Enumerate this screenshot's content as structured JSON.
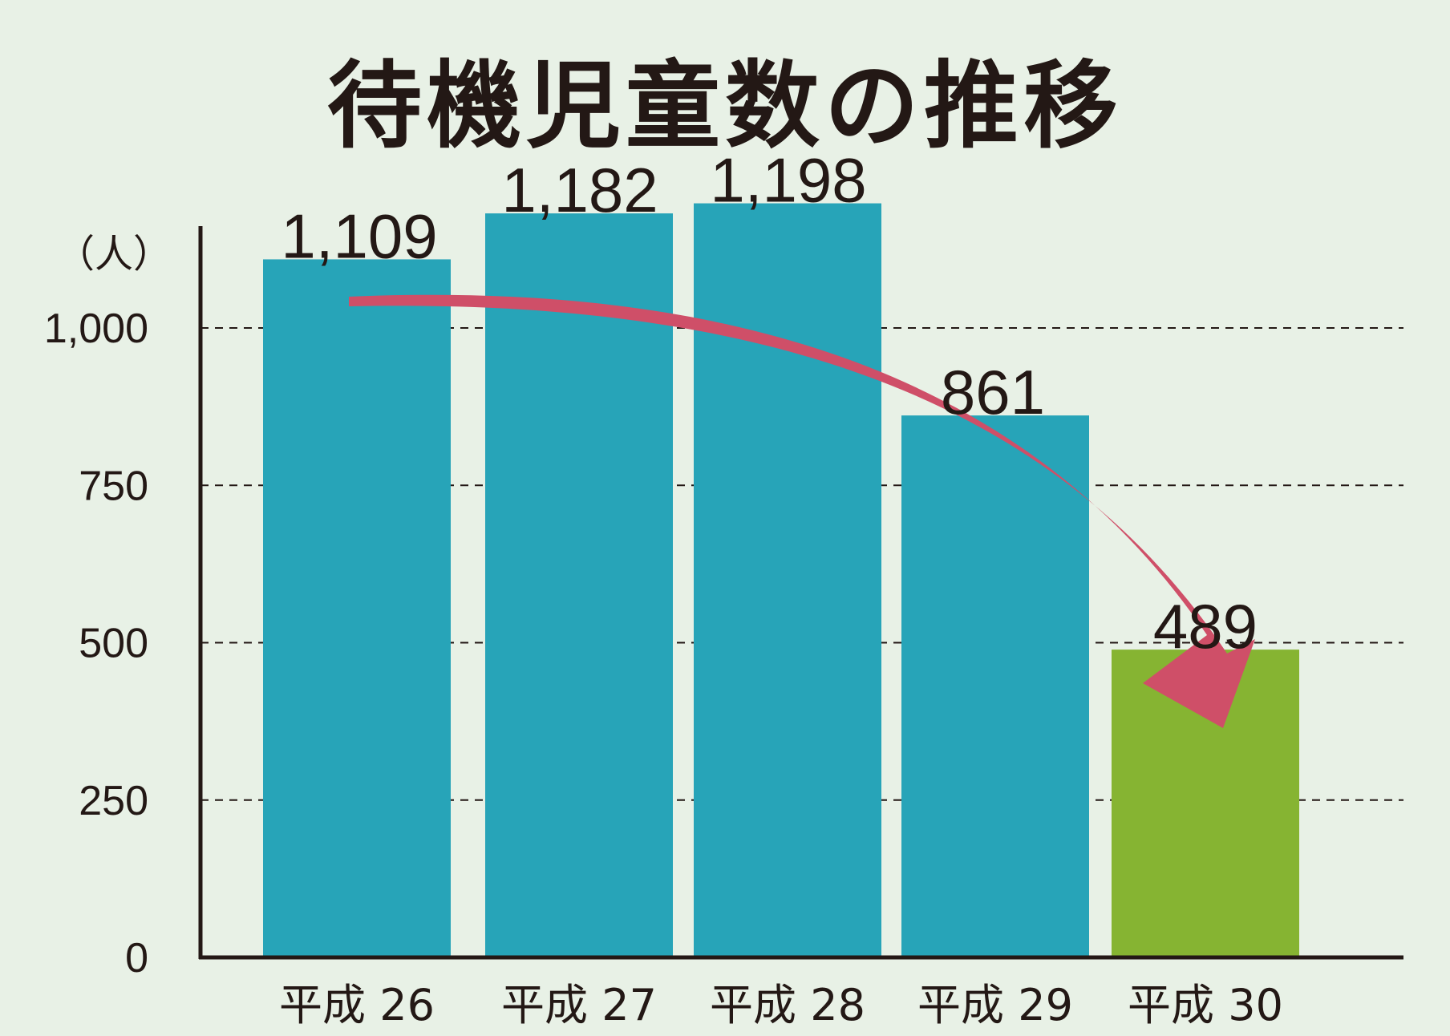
{
  "title": "待機児童数の推移",
  "chart_data": {
    "type": "bar",
    "title": "待機児童数の推移",
    "ylabel": "（人）",
    "xlabel": "",
    "categories": [
      "平成 26",
      "平成 27",
      "平成 28",
      "平成 29",
      "平成 30"
    ],
    "values": [
      1109,
      1182,
      1198,
      861,
      489
    ],
    "value_labels": [
      "1,109",
      "1,182",
      "1,198",
      "861",
      "489"
    ],
    "yticks": [
      0,
      250,
      500,
      750,
      1000
    ],
    "ytick_labels": [
      "0",
      "250",
      "500",
      "750",
      "1,000"
    ],
    "ylim": [
      0,
      1200
    ],
    "grid": "dashed horizontal",
    "colors": {
      "bar": "#27a4b8",
      "highlight_bar": "#86b432",
      "arrow": "#cf4f68",
      "axis": "#231815"
    },
    "highlight_index": 4,
    "annotation": "decreasing-trend-arrow"
  }
}
